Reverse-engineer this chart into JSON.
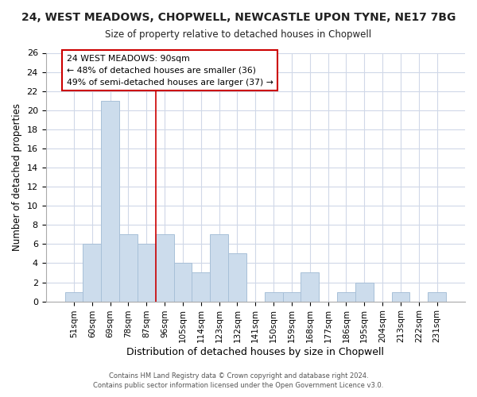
{
  "title": "24, WEST MEADOWS, CHOPWELL, NEWCASTLE UPON TYNE, NE17 7BG",
  "subtitle": "Size of property relative to detached houses in Chopwell",
  "xlabel": "Distribution of detached houses by size in Chopwell",
  "ylabel": "Number of detached properties",
  "bar_color": "#ccdcec",
  "bar_edge_color": "#a8c0d8",
  "categories": [
    "51sqm",
    "60sqm",
    "69sqm",
    "78sqm",
    "87sqm",
    "96sqm",
    "105sqm",
    "114sqm",
    "123sqm",
    "132sqm",
    "141sqm",
    "150sqm",
    "159sqm",
    "168sqm",
    "177sqm",
    "186sqm",
    "195sqm",
    "204sqm",
    "213sqm",
    "222sqm",
    "231sqm"
  ],
  "values": [
    1,
    6,
    21,
    7,
    6,
    7,
    4,
    3,
    7,
    5,
    0,
    1,
    1,
    3,
    0,
    1,
    2,
    0,
    1,
    0,
    1
  ],
  "ylim": [
    0,
    26
  ],
  "yticks": [
    0,
    2,
    4,
    6,
    8,
    10,
    12,
    14,
    16,
    18,
    20,
    22,
    24,
    26
  ],
  "property_label": "24 WEST MEADOWS: 90sqm",
  "annotation_line1": "← 48% of detached houses are smaller (36)",
  "annotation_line2": "49% of semi-detached houses are larger (37) →",
  "vline_position": 4.5,
  "footnote1": "Contains HM Land Registry data © Crown copyright and database right 2024.",
  "footnote2": "Contains public sector information licensed under the Open Government Licence v3.0.",
  "background_color": "#ffffff",
  "grid_color": "#d0d8e8"
}
